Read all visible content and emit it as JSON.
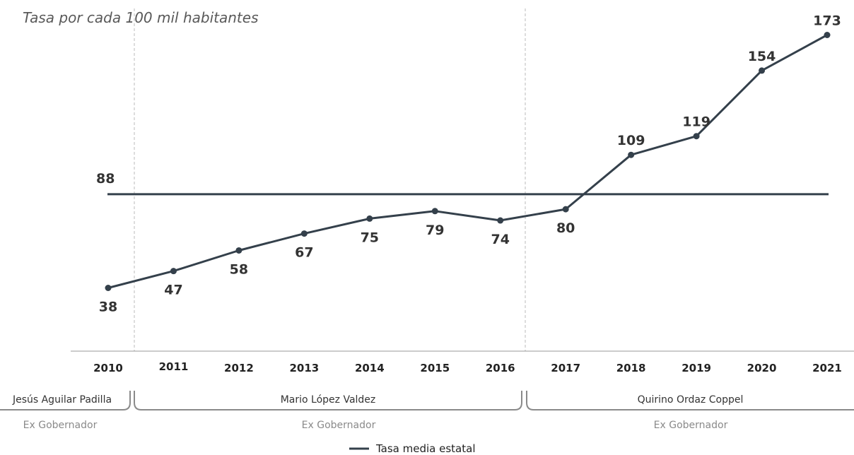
{
  "chart_data": {
    "type": "line",
    "subtitle": "Tasa por cada 100 mil habitantes",
    "categories": [
      "2010",
      "2011",
      "2012",
      "2013",
      "2014",
      "2015",
      "2016",
      "2017",
      "2018",
      "2019",
      "2020",
      "2021"
    ],
    "series": [
      {
        "values": [
          38,
          47,
          58,
          67,
          75,
          79,
          74,
          80,
          109,
          119,
          154,
          173
        ],
        "color": "#34404b"
      }
    ],
    "reference_line": {
      "name": "Tasa media estatal",
      "value": 88,
      "label": "88",
      "color": "#34404b"
    },
    "periods": [
      {
        "name": "Jesús Aguilar Padilla",
        "role": "Ex Gobernador",
        "start": "2010",
        "end": "2010"
      },
      {
        "name": "Mario López Valdez",
        "role": "Ex Gobernador",
        "start": "2011",
        "end": "2016"
      },
      {
        "name": "Quirino Ordaz Coppel",
        "role": "Ex Gobernador",
        "start": "2017",
        "end": "2021"
      }
    ],
    "legend": {
      "items": [
        "Tasa media estatal"
      ],
      "position": "bottom-center"
    },
    "grid": false
  }
}
